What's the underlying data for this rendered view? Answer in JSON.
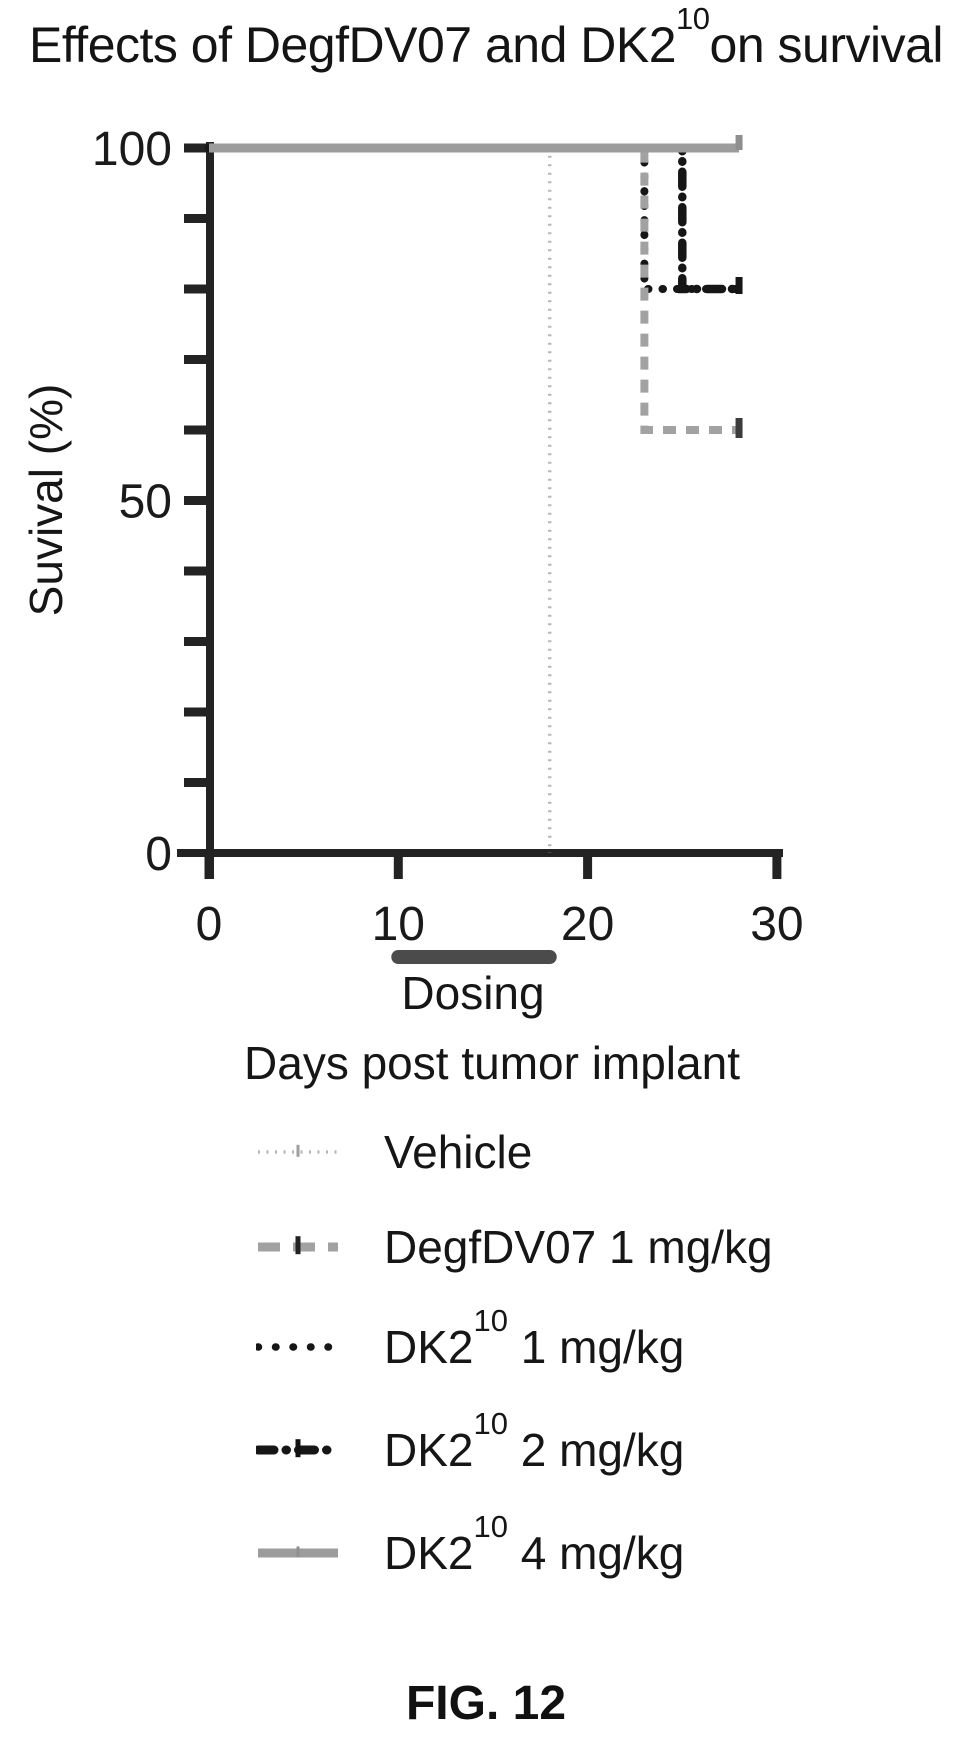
{
  "title": {
    "pre": "Effects of DegfDV07 and DK2",
    "sup": "10",
    "post": "on survival"
  },
  "axes": {
    "y": {
      "label": "Suvival (%)",
      "tick_labels": [
        0,
        50,
        100
      ],
      "minor_step": 10,
      "range": [
        0,
        100
      ]
    },
    "x": {
      "label": "Days post tumor implant",
      "tick_labels": [
        0,
        10,
        20,
        30
      ],
      "range": [
        0,
        30
      ]
    }
  },
  "dosing": {
    "label": "Dosing",
    "start_day": 10,
    "end_day": 18
  },
  "chart_data": {
    "type": "line",
    "kind": "kaplan-meier-survival-step-curves",
    "title": "Effects of DegfDV07 and DK2^10 on survival",
    "xlabel": "Days post tumor implant",
    "ylabel": "Suvival (%)",
    "xlim": [
      0,
      30
    ],
    "ylim": [
      0,
      100
    ],
    "x_ticks": [
      0,
      10,
      20,
      30
    ],
    "y_ticks_labeled": [
      0,
      50,
      100
    ],
    "y_minor_tick_step": 10,
    "follow_up_end_day": 28,
    "dosing_period_days": [
      10,
      18
    ],
    "series": [
      {
        "name": "Vehicle",
        "points": [
          [
            0,
            100
          ],
          [
            18,
            100
          ],
          [
            18,
            0
          ]
        ],
        "final_survival_pct": 0,
        "drop_day": 18,
        "style": {
          "color": "#b7b7b7",
          "width": 3.5,
          "dash": "2 6.5",
          "cap": "butt",
          "z": 4
        },
        "legend_marker": {
          "width": 3.5,
          "dash": "2 6.5",
          "tick": {
            "color": "#9f9f9f",
            "w": 3,
            "h": 12
          }
        }
      },
      {
        "name": "DegfDV07 1 mg/kg",
        "points": [
          [
            0,
            100
          ],
          [
            23,
            100
          ],
          [
            23,
            60
          ],
          [
            28,
            60
          ]
        ],
        "final_survival_pct": 60,
        "drop_day": 23,
        "style": {
          "color": "#a2a2a2",
          "width": 8,
          "dash": "13 10",
          "cap": "butt",
          "z": 3
        },
        "end_tick": {
          "color": "#3c3c3c",
          "w": 7,
          "up": 12,
          "down": 8
        },
        "legend_marker": {
          "width": 9,
          "dash": "22 13",
          "tick": {
            "color": "#222222",
            "w": 5,
            "h": 18
          }
        }
      },
      {
        "name": "DK2^10 1 mg/kg",
        "points": [
          [
            0,
            100
          ],
          [
            23,
            100
          ],
          [
            23,
            80
          ],
          [
            28,
            80
          ]
        ],
        "final_survival_pct": 80,
        "drop_day": 23,
        "style": {
          "color": "#161616",
          "width": 8,
          "dash": "0.5 14",
          "cap": "round",
          "z": 1
        },
        "legend_marker": {
          "width": 7.5,
          "dash": "0.5 17",
          "tick": null
        }
      },
      {
        "name": "DK2^10 2 mg/kg",
        "points": [
          [
            0,
            100
          ],
          [
            25,
            100
          ],
          [
            25,
            80
          ],
          [
            28,
            80
          ]
        ],
        "final_survival_pct": 80,
        "drop_day": 25,
        "style": {
          "color": "#161616",
          "width": 8.5,
          "dash": "15 10 0.5 10",
          "cap": "round",
          "z": 2
        },
        "end_tick": {
          "color": "#161616",
          "w": 7,
          "up": 12,
          "down": 5
        },
        "legend_marker": {
          "width": 9,
          "dash": "16 12 0.5 12",
          "tick": {
            "color": "#111111",
            "w": 5,
            "h": 18
          }
        }
      },
      {
        "name": "DK2^10 4 mg/kg",
        "points": [
          [
            0,
            100
          ],
          [
            28,
            100
          ]
        ],
        "final_survival_pct": 100,
        "drop_day": null,
        "style": {
          "color": "#9c9c9c",
          "width": 9,
          "dash": null,
          "cap": "butt",
          "z": 5
        },
        "end_tick": {
          "color": "#8f8f8f",
          "w": 7,
          "up": 13,
          "down": 2
        },
        "legend_marker": {
          "width": 9,
          "dash": null,
          "tick": {
            "color": "#8f8f8f",
            "w": 3,
            "h": 11
          }
        }
      }
    ]
  },
  "legend": {
    "items": [
      {
        "pre": "Vehicle",
        "sup": "",
        "post": ""
      },
      {
        "pre": "DegfDV07 1 mg/kg",
        "sup": "",
        "post": ""
      },
      {
        "pre": "DK2",
        "sup": "10",
        "post": " 1 mg/kg"
      },
      {
        "pre": "DK2",
        "sup": "10",
        "post": " 2 mg/kg"
      },
      {
        "pre": "DK2",
        "sup": "10",
        "post": " 4 mg/kg"
      }
    ]
  },
  "caption": "FIG. 12",
  "colors": {
    "axis": "#232323",
    "text": "#1a1a1a",
    "dosing_bar": "#4b4b4b",
    "background": "#ffffff"
  }
}
